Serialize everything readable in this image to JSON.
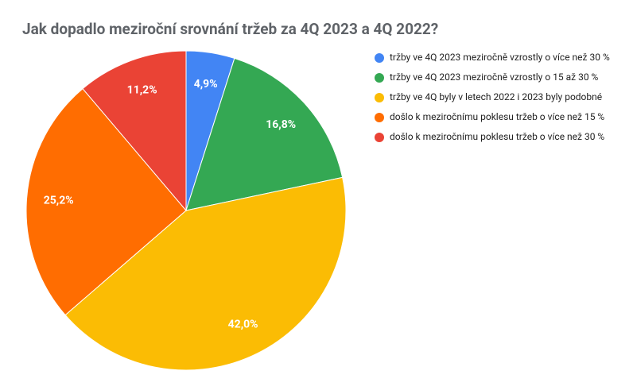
{
  "chart_data": {
    "type": "pie",
    "title": "Jak dopadlo meziroční srovnání tržeb za 4Q 2023 a 4Q 2022?",
    "categories": [
      "tržby ve 4Q 2023 meziročně vzrostly o více než 30 %",
      "tržby ve 4Q 2023 meziročně vzrostly o 15 až 30 %",
      "tržby ve 4Q byly v letech 2022 i 2023 byly podobné",
      "došlo k meziročnímu poklesu tržeb o více než 15 %",
      "došlo k meziročnímu poklesu tržeb o více než 30 %"
    ],
    "values": [
      4.9,
      16.8,
      42.0,
      25.2,
      11.2
    ],
    "value_labels": [
      "4,9%",
      "16,8%",
      "42,0%",
      "25,2%",
      "11,2%"
    ],
    "colors": [
      "#4285f4",
      "#34a853",
      "#fbbc04",
      "#ff6d01",
      "#ea4335"
    ],
    "legend": "right"
  }
}
